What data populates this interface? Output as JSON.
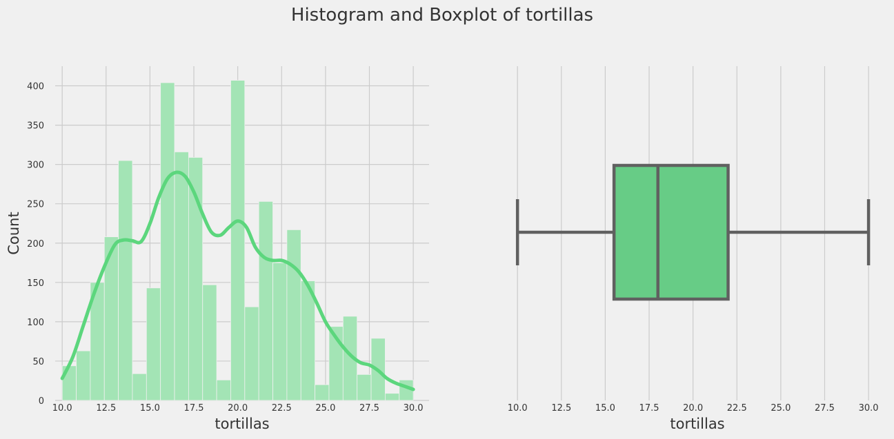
{
  "figure": {
    "title": "Histogram and Boxplot of tortillas"
  },
  "colors": {
    "background": "#f0f0f0",
    "grid": "#cbcbcb",
    "hist_bar": "#a3e4b5",
    "kde_line": "#5cd67d",
    "box_fill": "#67cc86",
    "box_edge": "#606060",
    "text": "#333333"
  },
  "chart_data": [
    {
      "type": "bar",
      "subtype": "histogram_with_kde",
      "xlabel": "tortillas",
      "ylabel": "Count",
      "xlim": [
        9.6,
        30.9
      ],
      "ylim": [
        0,
        425
      ],
      "xticks": [
        "10.0",
        "12.5",
        "15.0",
        "17.5",
        "20.0",
        "22.5",
        "25.0",
        "27.5",
        "30.0"
      ],
      "yticks": [
        "0",
        "50",
        "100",
        "150",
        "200",
        "250",
        "300",
        "350",
        "400"
      ],
      "grid": true,
      "bin_width": 0.8,
      "bins": [
        {
          "x0": 10.0,
          "x1": 10.8,
          "count": 44
        },
        {
          "x0": 10.8,
          "x1": 11.6,
          "count": 63
        },
        {
          "x0": 11.6,
          "x1": 12.4,
          "count": 150
        },
        {
          "x0": 12.4,
          "x1": 13.2,
          "count": 208
        },
        {
          "x0": 13.2,
          "x1": 14.0,
          "count": 305
        },
        {
          "x0": 14.0,
          "x1": 14.8,
          "count": 34
        },
        {
          "x0": 14.8,
          "x1": 15.6,
          "count": 143
        },
        {
          "x0": 15.6,
          "x1": 16.4,
          "count": 404
        },
        {
          "x0": 16.4,
          "x1": 17.2,
          "count": 316
        },
        {
          "x0": 17.2,
          "x1": 18.0,
          "count": 309
        },
        {
          "x0": 18.0,
          "x1": 18.8,
          "count": 147
        },
        {
          "x0": 18.8,
          "x1": 19.6,
          "count": 26
        },
        {
          "x0": 19.6,
          "x1": 20.4,
          "count": 407
        },
        {
          "x0": 20.4,
          "x1": 21.2,
          "count": 119
        },
        {
          "x0": 21.2,
          "x1": 22.0,
          "count": 253
        },
        {
          "x0": 22.0,
          "x1": 22.8,
          "count": 175
        },
        {
          "x0": 22.8,
          "x1": 23.6,
          "count": 217
        },
        {
          "x0": 23.6,
          "x1": 24.4,
          "count": 152
        },
        {
          "x0": 24.4,
          "x1": 25.2,
          "count": 20
        },
        {
          "x0": 25.2,
          "x1": 26.0,
          "count": 94
        },
        {
          "x0": 26.0,
          "x1": 26.8,
          "count": 107
        },
        {
          "x0": 26.8,
          "x1": 27.6,
          "count": 33
        },
        {
          "x0": 27.6,
          "x1": 28.4,
          "count": 79
        },
        {
          "x0": 28.4,
          "x1": 29.2,
          "count": 9
        },
        {
          "x0": 29.2,
          "x1": 30.0,
          "count": 26
        }
      ],
      "kde": [
        {
          "x": 10.0,
          "y": 28
        },
        {
          "x": 10.6,
          "y": 55
        },
        {
          "x": 11.2,
          "y": 95
        },
        {
          "x": 11.8,
          "y": 135
        },
        {
          "x": 12.4,
          "y": 170
        },
        {
          "x": 13.0,
          "y": 198
        },
        {
          "x": 13.5,
          "y": 204
        },
        {
          "x": 14.0,
          "y": 203
        },
        {
          "x": 14.5,
          "y": 202
        },
        {
          "x": 15.0,
          "y": 225
        },
        {
          "x": 15.5,
          "y": 258
        },
        {
          "x": 16.0,
          "y": 282
        },
        {
          "x": 16.5,
          "y": 290
        },
        {
          "x": 17.0,
          "y": 285
        },
        {
          "x": 17.5,
          "y": 265
        },
        {
          "x": 18.0,
          "y": 237
        },
        {
          "x": 18.5,
          "y": 214
        },
        {
          "x": 19.0,
          "y": 210
        },
        {
          "x": 19.5,
          "y": 220
        },
        {
          "x": 20.0,
          "y": 228
        },
        {
          "x": 20.5,
          "y": 220
        },
        {
          "x": 21.0,
          "y": 195
        },
        {
          "x": 21.5,
          "y": 182
        },
        {
          "x": 22.0,
          "y": 178
        },
        {
          "x": 22.5,
          "y": 178
        },
        {
          "x": 23.0,
          "y": 173
        },
        {
          "x": 23.5,
          "y": 163
        },
        {
          "x": 24.0,
          "y": 146
        },
        {
          "x": 24.5,
          "y": 124
        },
        {
          "x": 25.0,
          "y": 100
        },
        {
          "x": 25.5,
          "y": 83
        },
        {
          "x": 26.0,
          "y": 68
        },
        {
          "x": 26.5,
          "y": 56
        },
        {
          "x": 27.0,
          "y": 48
        },
        {
          "x": 27.5,
          "y": 45
        },
        {
          "x": 28.0,
          "y": 38
        },
        {
          "x": 28.5,
          "y": 28
        },
        {
          "x": 29.0,
          "y": 22
        },
        {
          "x": 29.5,
          "y": 18
        },
        {
          "x": 30.0,
          "y": 14
        }
      ]
    },
    {
      "type": "boxplot",
      "orientation": "horizontal",
      "xlabel": "tortillas",
      "xlim": [
        9.6,
        30.9
      ],
      "xticks": [
        "10.0",
        "12.5",
        "15.0",
        "17.5",
        "20.0",
        "22.5",
        "25.0",
        "27.5",
        "30.0"
      ],
      "grid": true,
      "stats": {
        "min": 10.0,
        "q1": 15.5,
        "median": 18.0,
        "q3": 22.0,
        "max": 30.0
      }
    }
  ]
}
